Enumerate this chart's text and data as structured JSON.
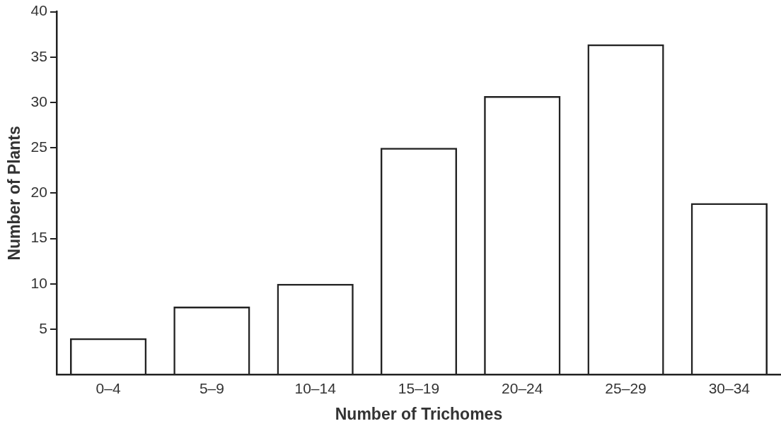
{
  "chart_data": {
    "type": "bar",
    "xlabel": "Number of Trichomes",
    "ylabel": "Number of Plants",
    "categories": [
      "0–4",
      "5–9",
      "10–14",
      "15–19",
      "20–24",
      "25–29",
      "30–34"
    ],
    "values": [
      4,
      7.5,
      10,
      25,
      30.7,
      36.4,
      18.9
    ],
    "color": "#222222",
    "ylim": [
      0,
      40
    ],
    "yticks": [
      5,
      10,
      15,
      20,
      25,
      30,
      35,
      40
    ],
    "grid": false,
    "legend": false
  }
}
